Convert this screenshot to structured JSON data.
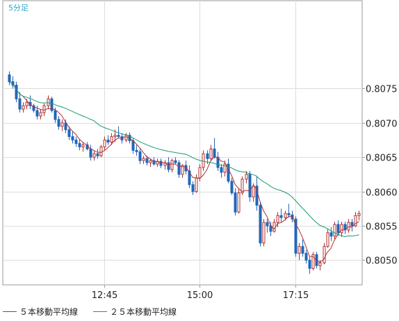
{
  "chart_data": {
    "type": "candlestick",
    "timeframe": "5分足",
    "x_tick_labels": [
      "12:45",
      "15:00",
      "17:15"
    ],
    "y_tick_labels": [
      "0.8050",
      "0.8055",
      "0.8060",
      "0.8065",
      "0.8070",
      "0.8075"
    ],
    "ylim": [
      0.80464,
      0.80878
    ],
    "grid": true,
    "series": [
      {
        "name": "５本移動平均線",
        "color": "#b03030"
      },
      {
        "name": "２５本移動平均線",
        "color": "#1a9a70"
      }
    ],
    "candles": [
      [
        0.8077,
        0.80775,
        0.80755,
        0.8076
      ],
      [
        0.8076,
        0.80768,
        0.8075,
        0.80755
      ],
      [
        0.80755,
        0.8076,
        0.8073,
        0.80735
      ],
      [
        0.80735,
        0.80745,
        0.80715,
        0.8072
      ],
      [
        0.8072,
        0.8073,
        0.80715,
        0.80725
      ],
      [
        0.80725,
        0.80735,
        0.8072,
        0.8073
      ],
      [
        0.8073,
        0.8074,
        0.8072,
        0.80725
      ],
      [
        0.80725,
        0.80728,
        0.80715,
        0.80718
      ],
      [
        0.80718,
        0.80725,
        0.80705,
        0.8071
      ],
      [
        0.8071,
        0.8072,
        0.80705,
        0.80715
      ],
      [
        0.80715,
        0.80728,
        0.8071,
        0.80725
      ],
      [
        0.80725,
        0.8074,
        0.8072,
        0.80735
      ],
      [
        0.80735,
        0.80738,
        0.80715,
        0.80718
      ],
      [
        0.80718,
        0.80722,
        0.807,
        0.80705
      ],
      [
        0.80705,
        0.8071,
        0.8069,
        0.80695
      ],
      [
        0.80695,
        0.80705,
        0.80688,
        0.807
      ],
      [
        0.807,
        0.80705,
        0.80685,
        0.8069
      ],
      [
        0.8069,
        0.80695,
        0.80675,
        0.8068
      ],
      [
        0.8068,
        0.80688,
        0.8067,
        0.80675
      ],
      [
        0.80675,
        0.8068,
        0.80665,
        0.8067
      ],
      [
        0.8067,
        0.80676,
        0.8066,
        0.80665
      ],
      [
        0.80665,
        0.80672,
        0.80658,
        0.80668
      ],
      [
        0.80668,
        0.80672,
        0.8066,
        0.80662
      ],
      [
        0.80662,
        0.80668,
        0.80645,
        0.8065
      ],
      [
        0.8065,
        0.8066,
        0.80645,
        0.80655
      ],
      [
        0.80655,
        0.80662,
        0.80648,
        0.80652
      ],
      [
        0.80652,
        0.80668,
        0.8065,
        0.80665
      ],
      [
        0.80665,
        0.8068,
        0.8066,
        0.80675
      ],
      [
        0.80675,
        0.80682,
        0.80668,
        0.80672
      ],
      [
        0.80672,
        0.80685,
        0.80668,
        0.8068
      ],
      [
        0.8068,
        0.8069,
        0.80672,
        0.80682
      ],
      [
        0.80682,
        0.80695,
        0.80678,
        0.8068
      ],
      [
        0.8068,
        0.80685,
        0.8067,
        0.80675
      ],
      [
        0.80675,
        0.80685,
        0.80672,
        0.80682
      ],
      [
        0.80682,
        0.80686,
        0.8067,
        0.80674
      ],
      [
        0.80674,
        0.80678,
        0.80655,
        0.8066
      ],
      [
        0.8066,
        0.80668,
        0.80652,
        0.80658
      ],
      [
        0.80658,
        0.80662,
        0.8064,
        0.80645
      ],
      [
        0.80645,
        0.80652,
        0.8064,
        0.80648
      ],
      [
        0.80648,
        0.80652,
        0.80638,
        0.80642
      ],
      [
        0.80642,
        0.80648,
        0.80636,
        0.80645
      ],
      [
        0.80645,
        0.8065,
        0.80638,
        0.8064
      ],
      [
        0.8064,
        0.80648,
        0.80636,
        0.80644
      ],
      [
        0.80644,
        0.80648,
        0.80634,
        0.80638
      ],
      [
        0.80638,
        0.80646,
        0.80632,
        0.80642
      ],
      [
        0.80642,
        0.8065,
        0.80628,
        0.80632
      ],
      [
        0.80632,
        0.80648,
        0.80628,
        0.80645
      ],
      [
        0.80645,
        0.8065,
        0.8064,
        0.80642
      ],
      [
        0.80642,
        0.80646,
        0.8062,
        0.80625
      ],
      [
        0.80625,
        0.8064,
        0.8062,
        0.80638
      ],
      [
        0.80638,
        0.80645,
        0.80625,
        0.8063
      ],
      [
        0.8063,
        0.80638,
        0.80605,
        0.8061
      ],
      [
        0.8061,
        0.80615,
        0.80595,
        0.806
      ],
      [
        0.806,
        0.80625,
        0.80598,
        0.8062
      ],
      [
        0.8062,
        0.8064,
        0.80615,
        0.80635
      ],
      [
        0.80635,
        0.8066,
        0.8063,
        0.80655
      ],
      [
        0.80655,
        0.8066,
        0.8064,
        0.80648
      ],
      [
        0.80648,
        0.80668,
        0.80645,
        0.80662
      ],
      [
        0.80662,
        0.80678,
        0.80648,
        0.8065
      ],
      [
        0.8065,
        0.80658,
        0.8063,
        0.80635
      ],
      [
        0.80635,
        0.8064,
        0.8062,
        0.80628
      ],
      [
        0.80628,
        0.80645,
        0.80622,
        0.8064
      ],
      [
        0.8064,
        0.80648,
        0.80612,
        0.80615
      ],
      [
        0.80615,
        0.8062,
        0.80595,
        0.80598
      ],
      [
        0.80598,
        0.80605,
        0.80565,
        0.8057
      ],
      [
        0.8057,
        0.80605,
        0.80568,
        0.80598
      ],
      [
        0.80598,
        0.80622,
        0.80595,
        0.80618
      ],
      [
        0.80618,
        0.8063,
        0.80612,
        0.80625
      ],
      [
        0.80625,
        0.8063,
        0.80585,
        0.80592
      ],
      [
        0.80592,
        0.80612,
        0.80585,
        0.80608
      ],
      [
        0.80608,
        0.80622,
        0.80572,
        0.8058
      ],
      [
        0.8058,
        0.80585,
        0.8052,
        0.80525
      ],
      [
        0.80525,
        0.8056,
        0.8052,
        0.80555
      ],
      [
        0.80555,
        0.8056,
        0.8054,
        0.8055
      ],
      [
        0.8055,
        0.80556,
        0.80535,
        0.80542
      ],
      [
        0.80542,
        0.8056,
        0.8054,
        0.80555
      ],
      [
        0.80555,
        0.8057,
        0.80548,
        0.80565
      ],
      [
        0.80565,
        0.80575,
        0.80555,
        0.80562
      ],
      [
        0.80562,
        0.80572,
        0.80558,
        0.80568
      ],
      [
        0.80568,
        0.80582,
        0.80562,
        0.80566
      ],
      [
        0.80566,
        0.80572,
        0.80555,
        0.8056
      ],
      [
        0.8056,
        0.80564,
        0.80505,
        0.8051
      ],
      [
        0.8051,
        0.80525,
        0.805,
        0.8052
      ],
      [
        0.8052,
        0.8053,
        0.80505,
        0.8051
      ],
      [
        0.8051,
        0.80515,
        0.80495,
        0.805
      ],
      [
        0.805,
        0.80505,
        0.8048,
        0.80488
      ],
      [
        0.80488,
        0.80512,
        0.80485,
        0.80508
      ],
      [
        0.80508,
        0.80512,
        0.80488,
        0.80492
      ],
      [
        0.80492,
        0.805,
        0.80485,
        0.80496
      ],
      [
        0.80496,
        0.80525,
        0.80494,
        0.8052
      ],
      [
        0.8052,
        0.80545,
        0.80518,
        0.8054
      ],
      [
        0.8054,
        0.80548,
        0.80528,
        0.80535
      ],
      [
        0.80535,
        0.80556,
        0.8053,
        0.80552
      ],
      [
        0.80552,
        0.80558,
        0.80535,
        0.8054
      ],
      [
        0.8054,
        0.80556,
        0.80534,
        0.80552
      ],
      [
        0.80552,
        0.80556,
        0.80538,
        0.80544
      ],
      [
        0.80544,
        0.8056,
        0.8054,
        0.80555
      ],
      [
        0.80555,
        0.8056,
        0.80542,
        0.8055
      ],
      [
        0.8055,
        0.8057,
        0.80548,
        0.80565
      ],
      [
        0.80565,
        0.80572,
        0.80558,
        0.80568
      ]
    ]
  }
}
